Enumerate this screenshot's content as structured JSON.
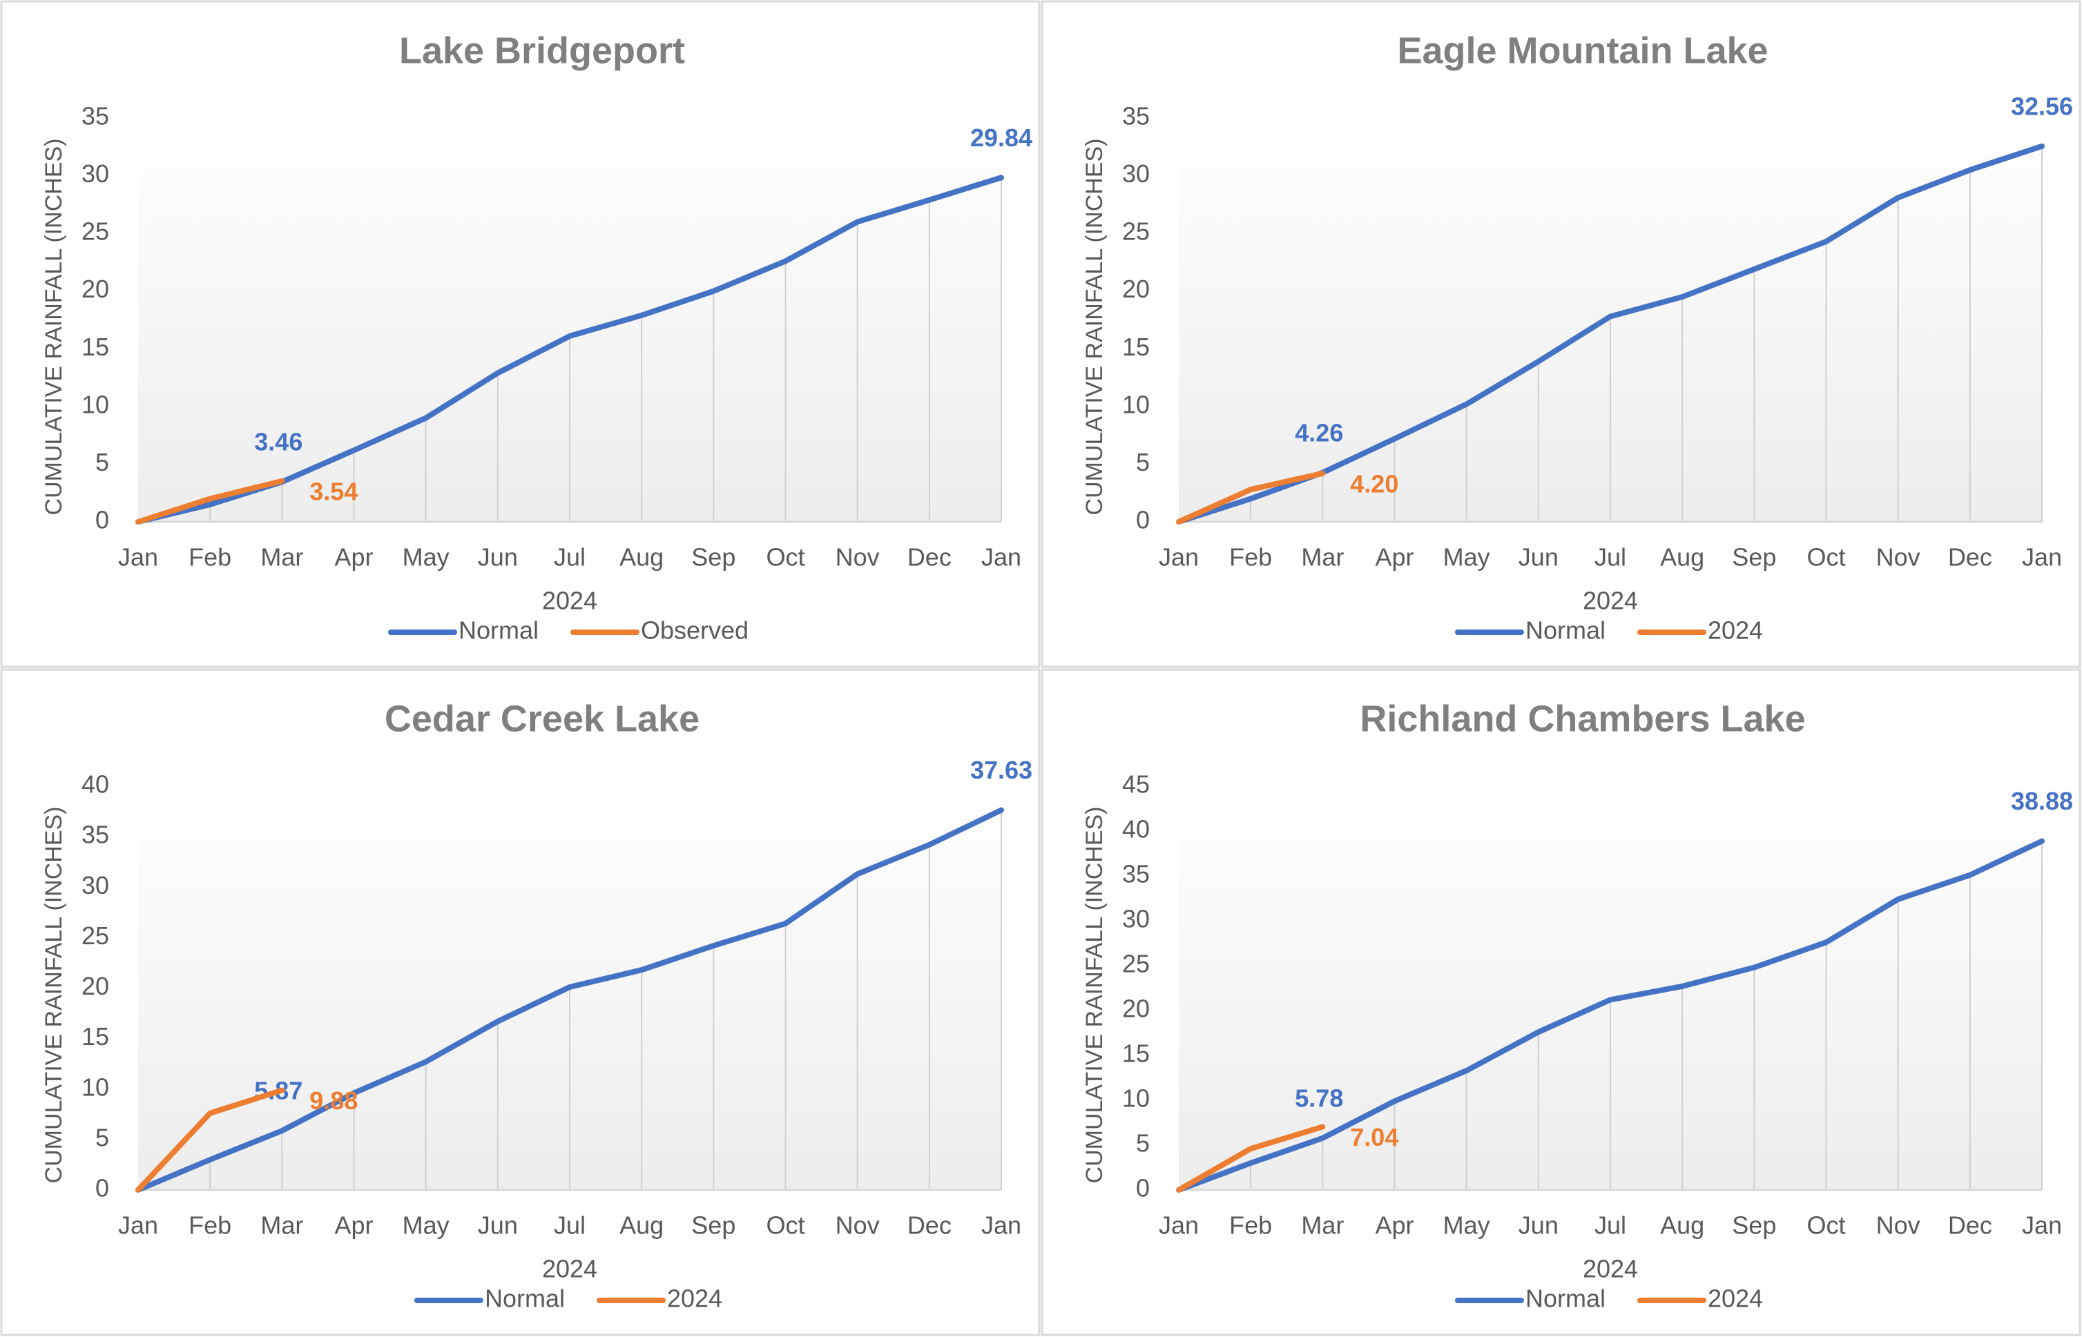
{
  "chart_data": [
    {
      "type": "line",
      "title": "Lake Bridgeport",
      "x_label": "2024",
      "y_label": "CUMULATIVE RAINFALL (INCHES)",
      "categories": [
        "Jan",
        "Feb",
        "Mar",
        "Apr",
        "May",
        "Jun",
        "Jul",
        "Aug",
        "Sep",
        "Oct",
        "Nov",
        "Dec",
        "Jan"
      ],
      "series": [
        {
          "name": "Normal",
          "color": "#4472c4",
          "values": [
            0,
            1.5,
            3.46,
            6.2,
            9.0,
            12.9,
            16.1,
            17.9,
            20.0,
            22.6,
            26.0,
            27.9,
            29.84
          ],
          "value_labels": [
            null,
            null,
            "3.46",
            null,
            null,
            null,
            null,
            null,
            null,
            null,
            null,
            null,
            "29.84"
          ]
        },
        {
          "name": "Observed",
          "color": "#ed7d31",
          "values": [
            0,
            2.0,
            3.54,
            null,
            null,
            null,
            null,
            null,
            null,
            null,
            null,
            null,
            null
          ],
          "value_labels": [
            null,
            null,
            "3.54",
            null,
            null,
            null,
            null,
            null,
            null,
            null,
            null,
            null,
            null
          ]
        }
      ],
      "ylim": [
        0,
        35
      ],
      "yticks": [
        0,
        5,
        10,
        15,
        20,
        25,
        30,
        35
      ],
      "drop_lines": true,
      "legend": "bottom"
    },
    {
      "type": "line",
      "title": "Eagle Mountain Lake",
      "x_label": "2024",
      "y_label": "CUMULATIVE RAINFALL (INCHES)",
      "categories": [
        "Jan",
        "Feb",
        "Mar",
        "Apr",
        "May",
        "Jun",
        "Jul",
        "Aug",
        "Sep",
        "Oct",
        "Nov",
        "Dec",
        "Jan"
      ],
      "series": [
        {
          "name": "Normal",
          "color": "#4472c4",
          "values": [
            0,
            2.0,
            4.26,
            7.2,
            10.2,
            13.9,
            17.8,
            19.5,
            21.9,
            24.3,
            28.1,
            30.5,
            32.56
          ],
          "value_labels": [
            null,
            null,
            "4.26",
            null,
            null,
            null,
            null,
            null,
            null,
            null,
            null,
            null,
            "32.56"
          ]
        },
        {
          "name": "2024",
          "color": "#ed7d31",
          "values": [
            0,
            2.8,
            4.2,
            null,
            null,
            null,
            null,
            null,
            null,
            null,
            null,
            null,
            null
          ],
          "value_labels": [
            null,
            null,
            "4.20",
            null,
            null,
            null,
            null,
            null,
            null,
            null,
            null,
            null,
            null
          ]
        }
      ],
      "ylim": [
        0,
        35
      ],
      "yticks": [
        0,
        5,
        10,
        15,
        20,
        25,
        30,
        35
      ],
      "drop_lines": true,
      "legend": "bottom"
    },
    {
      "type": "line",
      "title": "Cedar Creek Lake",
      "x_label": "2024",
      "y_label": "CUMULATIVE RAINFALL (INCHES)",
      "categories": [
        "Jan",
        "Feb",
        "Mar",
        "Apr",
        "May",
        "Jun",
        "Jul",
        "Aug",
        "Sep",
        "Oct",
        "Nov",
        "Dec",
        "Jan"
      ],
      "series": [
        {
          "name": "Normal",
          "color": "#4472c4",
          "values": [
            0,
            3.0,
            5.87,
            9.6,
            12.7,
            16.7,
            20.1,
            21.8,
            24.2,
            26.4,
            31.3,
            34.2,
            37.63
          ],
          "value_labels": [
            null,
            null,
            "5.87",
            null,
            null,
            null,
            null,
            null,
            null,
            null,
            null,
            null,
            "37.63"
          ]
        },
        {
          "name": "2024",
          "color": "#ed7d31",
          "values": [
            0,
            7.6,
            9.88,
            null,
            null,
            null,
            null,
            null,
            null,
            null,
            null,
            null,
            null
          ],
          "value_labels": [
            null,
            null,
            "9.88",
            null,
            null,
            null,
            null,
            null,
            null,
            null,
            null,
            null,
            null
          ]
        }
      ],
      "ylim": [
        0,
        40
      ],
      "yticks": [
        0,
        5,
        10,
        15,
        20,
        25,
        30,
        35,
        40
      ],
      "drop_lines": true,
      "legend": "bottom"
    },
    {
      "type": "line",
      "title": "Richland Chambers Lake",
      "x_label": "2024",
      "y_label": "CUMULATIVE RAINFALL (INCHES)",
      "categories": [
        "Jan",
        "Feb",
        "Mar",
        "Apr",
        "May",
        "Jun",
        "Jul",
        "Aug",
        "Sep",
        "Oct",
        "Nov",
        "Dec",
        "Jan"
      ],
      "series": [
        {
          "name": "Normal",
          "color": "#4472c4",
          "values": [
            0,
            3.0,
            5.78,
            9.9,
            13.3,
            17.6,
            21.2,
            22.7,
            24.8,
            27.6,
            32.4,
            35.1,
            38.88
          ],
          "value_labels": [
            null,
            null,
            "5.78",
            null,
            null,
            null,
            null,
            null,
            null,
            null,
            null,
            null,
            "38.88"
          ]
        },
        {
          "name": "2024",
          "color": "#ed7d31",
          "values": [
            0,
            4.6,
            7.04,
            null,
            null,
            null,
            null,
            null,
            null,
            null,
            null,
            null,
            null
          ],
          "value_labels": [
            null,
            null,
            "7.04",
            null,
            null,
            null,
            null,
            null,
            null,
            null,
            null,
            null,
            null
          ]
        }
      ],
      "ylim": [
        0,
        45
      ],
      "yticks": [
        0,
        5,
        10,
        15,
        20,
        25,
        30,
        35,
        40,
        45
      ],
      "drop_lines": true,
      "legend": "bottom"
    }
  ]
}
